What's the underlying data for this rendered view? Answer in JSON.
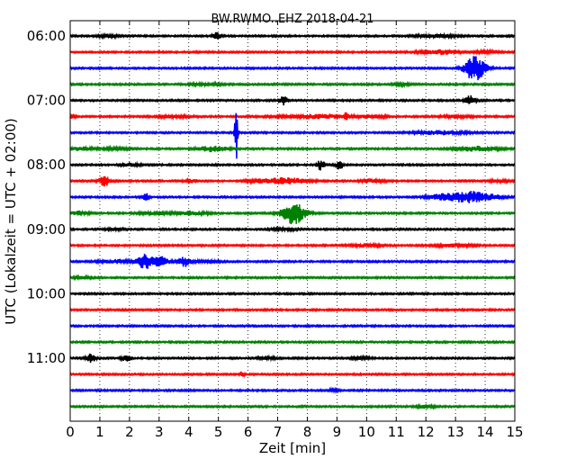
{
  "chart_data": {
    "type": "line",
    "title": "BW.RWMO..EHZ 2018-04-21",
    "xlabel": "Zeit  [min]",
    "ylabel": "UTC (Lokalzeit = UTC + 02:00)",
    "xlim": [
      0,
      15
    ],
    "x_ticks": [
      "0",
      "1",
      "2",
      "3",
      "4",
      "5",
      "6",
      "7",
      "8",
      "9",
      "10",
      "11",
      "12",
      "13",
      "14",
      "15"
    ],
    "y_ticks": [
      {
        "label": "06:00",
        "trace": 0
      },
      {
        "label": "07:00",
        "trace": 4
      },
      {
        "label": "08:00",
        "trace": 8
      },
      {
        "label": "09:00",
        "trace": 12
      },
      {
        "label": "10:00",
        "trace": 16
      },
      {
        "label": "11:00",
        "trace": 20
      }
    ],
    "grid": "vertical dotted",
    "trace_colors": [
      "#000000",
      "#ff0000",
      "#0000ff",
      "#008000"
    ],
    "traces": [
      {
        "start": "06:00",
        "color": "black",
        "events": [
          {
            "t": 1.3,
            "amp": 1.5,
            "dur": 0.3
          },
          {
            "t": 4.95,
            "amp": 4,
            "dur": 0.12
          },
          {
            "t": 12.3,
            "amp": 1.5,
            "dur": 0.6
          }
        ]
      },
      {
        "start": "06:15",
        "color": "red",
        "events": [
          {
            "t": 12.4,
            "amp": 2.5,
            "dur": 0.6
          },
          {
            "t": 14.0,
            "amp": 1,
            "dur": 0.4
          }
        ]
      },
      {
        "start": "06:30",
        "color": "blue",
        "events": [
          {
            "t": 13.65,
            "amp": 14,
            "dur": 0.35
          }
        ]
      },
      {
        "start": "06:45",
        "color": "green",
        "events": [
          {
            "t": 4.6,
            "amp": 1.2,
            "dur": 0.5
          },
          {
            "t": 11.2,
            "amp": 1,
            "dur": 0.3
          }
        ]
      },
      {
        "start": "07:00",
        "color": "black",
        "events": [
          {
            "t": 7.2,
            "amp": 5,
            "dur": 0.12
          },
          {
            "t": 13.5,
            "amp": 6,
            "dur": 0.15
          }
        ]
      },
      {
        "start": "07:15",
        "color": "red",
        "events": [
          {
            "t": 0.05,
            "amp": 3,
            "dur": 0.1
          },
          {
            "t": 3.5,
            "amp": 1,
            "dur": 0.6
          },
          {
            "t": 8.2,
            "amp": 2,
            "dur": 1.2
          },
          {
            "t": 9.3,
            "amp": 3,
            "dur": 0.08
          },
          {
            "t": 10.1,
            "amp": 1.5,
            "dur": 0.5
          },
          {
            "t": 13.0,
            "amp": 1.2,
            "dur": 0.5
          }
        ]
      },
      {
        "start": "07:30",
        "color": "blue",
        "events": [
          {
            "t": 5.6,
            "amp": 36,
            "dur": 0.05
          },
          {
            "t": 12.5,
            "amp": 2,
            "dur": 0.8
          }
        ]
      },
      {
        "start": "07:45",
        "color": "green",
        "events": [
          {
            "t": 0.3,
            "amp": 2,
            "dur": 0.4
          },
          {
            "t": 1.5,
            "amp": 1,
            "dur": 0.5
          },
          {
            "t": 4.8,
            "amp": 3,
            "dur": 0.5
          },
          {
            "t": 13.7,
            "amp": 2.5,
            "dur": 0.7
          }
        ]
      },
      {
        "start": "08:00",
        "color": "black",
        "events": [
          {
            "t": 2.0,
            "amp": 1.5,
            "dur": 0.3
          },
          {
            "t": 8.45,
            "amp": 6,
            "dur": 0.12
          },
          {
            "t": 9.1,
            "amp": 6,
            "dur": 0.1
          }
        ]
      },
      {
        "start": "08:15",
        "color": "red",
        "events": [
          {
            "t": 1.15,
            "amp": 6,
            "dur": 0.18
          },
          {
            "t": 4.1,
            "amp": 1.5,
            "dur": 0.2
          },
          {
            "t": 6.6,
            "amp": 2,
            "dur": 0.6
          },
          {
            "t": 7.4,
            "amp": 3,
            "dur": 0.6
          },
          {
            "t": 10.2,
            "amp": 2,
            "dur": 0.4
          },
          {
            "t": 14.5,
            "amp": 1.5,
            "dur": 0.3
          }
        ]
      },
      {
        "start": "08:30",
        "color": "blue",
        "events": [
          {
            "t": 2.55,
            "amp": 5,
            "dur": 0.1
          },
          {
            "t": 12.6,
            "amp": 3,
            "dur": 0.5
          },
          {
            "t": 13.5,
            "amp": 6,
            "dur": 0.6
          },
          {
            "t": 14.3,
            "amp": 2,
            "dur": 0.3
          }
        ]
      },
      {
        "start": "08:45",
        "color": "green",
        "events": [
          {
            "t": 0.3,
            "amp": 2,
            "dur": 0.3
          },
          {
            "t": 2.8,
            "amp": 1.5,
            "dur": 0.5
          },
          {
            "t": 4.1,
            "amp": 2,
            "dur": 0.5
          },
          {
            "t": 7.55,
            "amp": 12,
            "dur": 0.4
          }
        ]
      },
      {
        "start": "09:00",
        "color": "black",
        "events": [
          {
            "t": 1.5,
            "amp": 1.2,
            "dur": 0.3
          },
          {
            "t": 7.2,
            "amp": 1,
            "dur": 0.4
          }
        ]
      },
      {
        "start": "09:15",
        "color": "red",
        "events": [
          {
            "t": 10.0,
            "amp": 1.5,
            "dur": 0.5
          },
          {
            "t": 12.9,
            "amp": 1.5,
            "dur": 0.6
          }
        ]
      },
      {
        "start": "09:30",
        "color": "blue",
        "events": [
          {
            "t": 1.5,
            "amp": 2,
            "dur": 0.5
          },
          {
            "t": 2.55,
            "amp": 8,
            "dur": 0.3
          },
          {
            "t": 3.1,
            "amp": 7,
            "dur": 0.2
          },
          {
            "t": 3.85,
            "amp": 6,
            "dur": 0.2
          },
          {
            "t": 4.6,
            "amp": 1.5,
            "dur": 0.4
          }
        ]
      },
      {
        "start": "09:45",
        "color": "green",
        "events": [
          {
            "t": 0.4,
            "amp": 1,
            "dur": 0.3
          }
        ]
      },
      {
        "start": "10:00",
        "color": "black",
        "events": []
      },
      {
        "start": "10:15",
        "color": "red",
        "events": []
      },
      {
        "start": "10:30",
        "color": "blue",
        "events": []
      },
      {
        "start": "10:45",
        "color": "green",
        "events": []
      },
      {
        "start": "11:00",
        "color": "black",
        "events": [
          {
            "t": 0.7,
            "amp": 5,
            "dur": 0.15
          },
          {
            "t": 1.9,
            "amp": 4,
            "dur": 0.15
          },
          {
            "t": 6.6,
            "amp": 1.5,
            "dur": 0.3
          },
          {
            "t": 9.8,
            "amp": 1.2,
            "dur": 0.3
          }
        ]
      },
      {
        "start": "11:15",
        "color": "red",
        "events": [
          {
            "t": 5.8,
            "amp": 3,
            "dur": 0.08
          }
        ]
      },
      {
        "start": "11:30",
        "color": "blue",
        "events": [
          {
            "t": 8.9,
            "amp": 1,
            "dur": 0.2
          }
        ]
      },
      {
        "start": "11:45",
        "color": "green",
        "events": [
          {
            "t": 12.0,
            "amp": 1.5,
            "dur": 0.3
          }
        ]
      }
    ]
  }
}
